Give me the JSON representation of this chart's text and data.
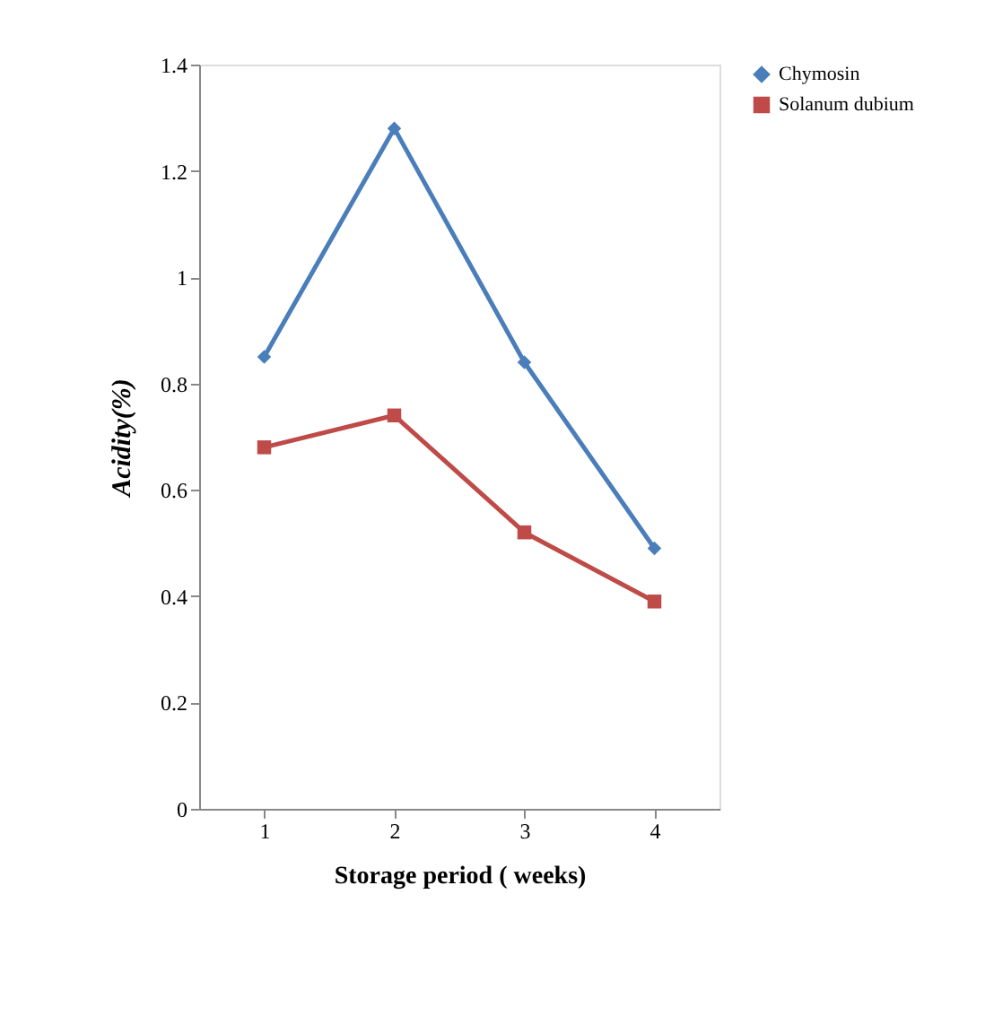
{
  "chart_data": {
    "type": "line",
    "xlabel": "Storage period ( weeks)",
    "ylabel": "Acidity(%)",
    "categories": [
      "1",
      "2",
      "3",
      "4"
    ],
    "series": [
      {
        "name": "Chymosin",
        "color": "#4a7ebb",
        "marker": "diamond",
        "values": [
          0.85,
          1.28,
          0.84,
          0.49
        ]
      },
      {
        "name": "Solanum dubium",
        "color": "#be4b48",
        "marker": "square",
        "values": [
          0.68,
          0.74,
          0.52,
          0.39
        ]
      }
    ],
    "ylim": [
      0,
      1.4
    ],
    "yticks": [
      0,
      0.2,
      0.4,
      0.6,
      0.8,
      1,
      1.2,
      1.4
    ],
    "grid": false,
    "legend": "right",
    "line_style": "solid"
  }
}
